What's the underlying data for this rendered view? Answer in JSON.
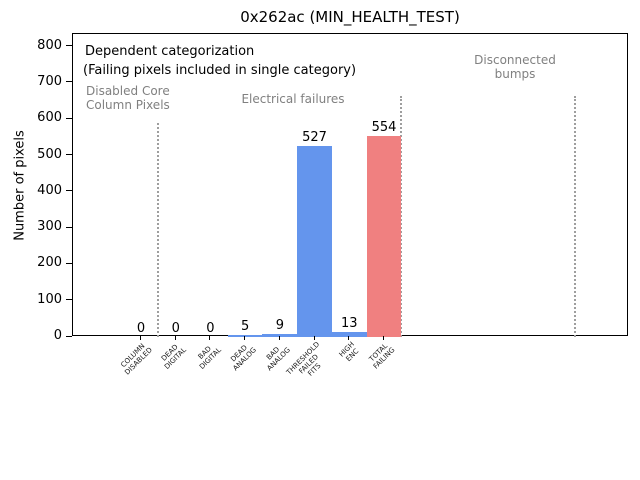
{
  "chart_data": {
    "type": "bar",
    "title": "0x262ac (MIN_HEALTH_TEST)",
    "xlabel": "",
    "ylabel": "Number of pixels",
    "ylim": [
      0,
      835
    ],
    "yticks": [
      0,
      100,
      200,
      300,
      400,
      500,
      600,
      700,
      800
    ],
    "grid": false,
    "legend": null,
    "categories": [
      [
        "COLUMN",
        "DISABLED"
      ],
      [
        "DEAD",
        "DIGITAL"
      ],
      [
        "BAD",
        "DIGITAL"
      ],
      [
        "DEAD",
        "ANALOG"
      ],
      [
        "BAD",
        "ANALOG"
      ],
      [
        "THRESHOLD",
        "FAILED",
        "FITS"
      ],
      [
        "HIGH",
        "ENC"
      ],
      [
        "TOTAL",
        "FAILING"
      ]
    ],
    "values": [
      0,
      0,
      0,
      5,
      9,
      527,
      13,
      554
    ],
    "bar_colors": [
      "#6495ED",
      "#6495ED",
      "#6495ED",
      "#6495ED",
      "#6495ED",
      "#6495ED",
      "#6495ED",
      "#F08080"
    ],
    "annotations": {
      "line1": "Dependent categorization",
      "line2": "(Failing pixels included in single category)"
    },
    "sections": [
      {
        "label_lines": [
          "Disabled Core",
          "Column Pixels"
        ]
      },
      {
        "label_lines": [
          "Electrical failures"
        ]
      },
      {
        "label_lines": [
          "Disconnected",
          "bumps"
        ]
      }
    ],
    "dividers_x_category_units": [
      0.5,
      7.5,
      12.5
    ],
    "colors": {
      "bar_blue": "#6495ED",
      "bar_red": "#F08080",
      "section_text": "#808080",
      "divider": "#9e9e9e",
      "axis": "#000000"
    }
  }
}
